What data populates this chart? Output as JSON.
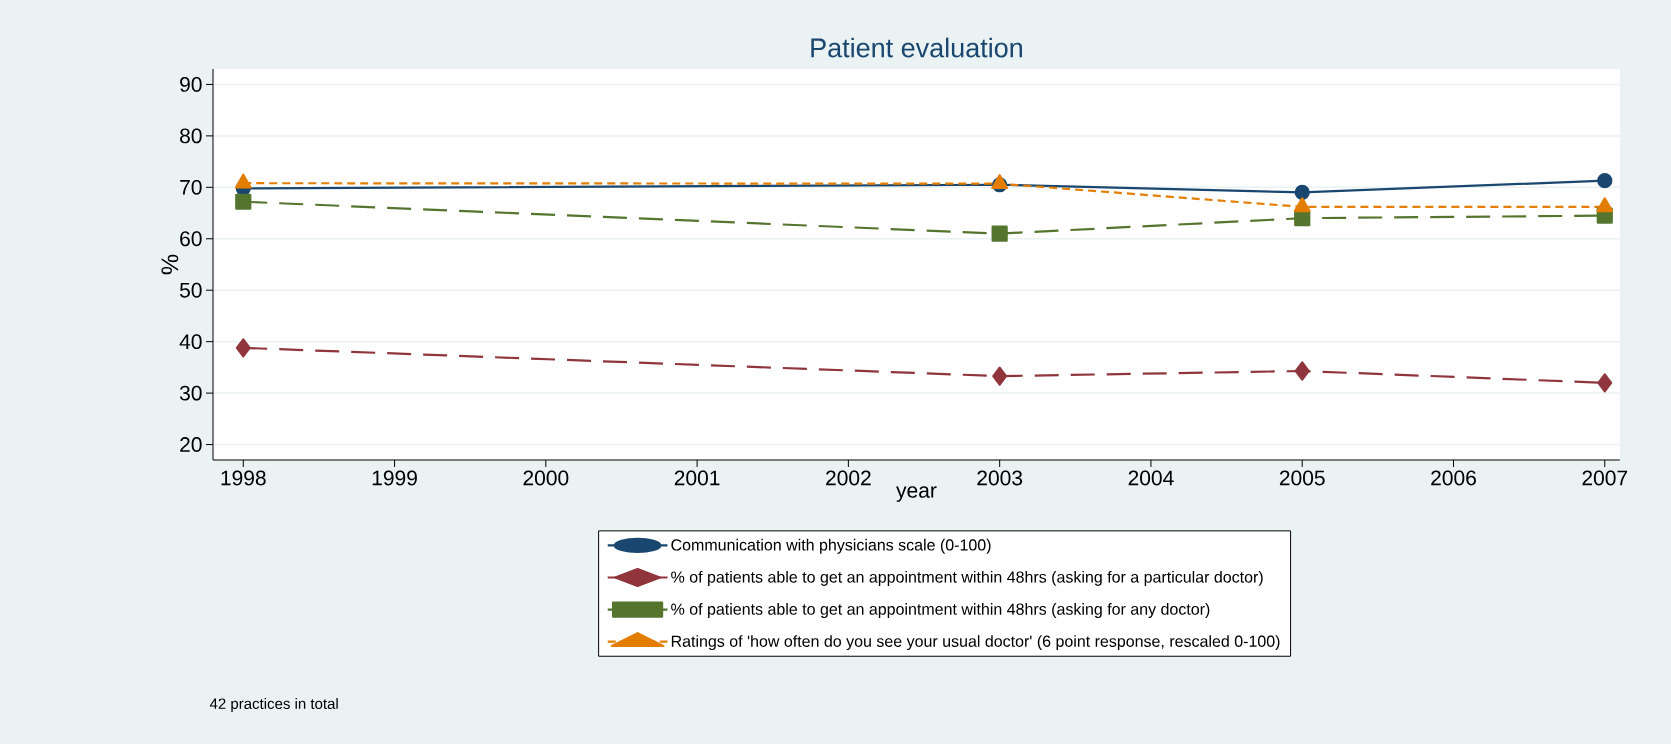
{
  "chart_data": {
    "type": "line",
    "title": "Patient evaluation",
    "xlabel": "year",
    "ylabel": "%",
    "x": [
      1998,
      2003,
      2005,
      2007
    ],
    "xlim": [
      1997.8,
      2007.1
    ],
    "ylim": [
      17,
      93
    ],
    "xticks": [
      1998,
      1999,
      2000,
      2001,
      2002,
      2003,
      2004,
      2005,
      2006,
      2007
    ],
    "yticks": [
      20,
      30,
      40,
      50,
      60,
      70,
      80,
      90
    ],
    "grid": "y",
    "legend": "bottom",
    "series": [
      {
        "name": "Communication with physicians scale (0-100)",
        "color": "#1a476f",
        "marker": "circle",
        "line_style": "solid",
        "values": [
          69.8,
          70.5,
          69.0,
          71.3
        ]
      },
      {
        "name": "% of patients able to get an appointment within 48hrs (asking for a particular doctor)",
        "color": "#90353b",
        "marker": "diamond",
        "line_style": "dashed",
        "values": [
          38.8,
          33.3,
          34.3,
          32.0
        ]
      },
      {
        "name": "% of patients able to get an appointment within 48hrs (asking for any doctor)",
        "color": "#55752f",
        "marker": "square",
        "line_style": "dashed",
        "values": [
          67.2,
          61.0,
          64.0,
          64.5
        ]
      },
      {
        "name": "Ratings of 'how often do you see your usual doctor' (6 point response, rescaled 0-100)",
        "color": "#e37e00",
        "marker": "triangle",
        "line_style": "dotted",
        "values": [
          70.8,
          70.7,
          66.2,
          66.2
        ]
      }
    ],
    "annotations": [
      "42 practices in total"
    ]
  }
}
